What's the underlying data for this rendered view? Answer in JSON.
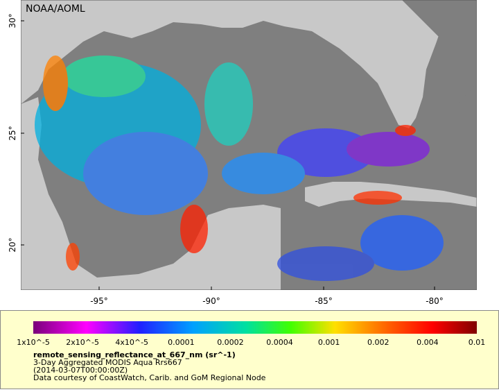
{
  "map": {
    "credit": "NOAA/AOML",
    "lat_ticks": [
      "30°",
      "25°",
      "20°"
    ],
    "lon_ticks": [
      "-95°",
      "-90°",
      "-85°",
      "-80°"
    ]
  },
  "legend": {
    "scale_labels": [
      "1x10^-5",
      "2x10^-5",
      "4x10^-5",
      "0.0001",
      "0.0002",
      "0.0004",
      "0.001",
      "0.002",
      "0.004",
      "0.01"
    ],
    "variable": "remote_sensing_reflectance_at_667_nm (sr^-1)",
    "lines": [
      "3-Day Aggregated MODIS Aqua Rrs667",
      "(2014-03-07T00:00:00Z)",
      "Data courtesy of CoastWatch, Carib. and GoM Regional Node"
    ]
  }
}
